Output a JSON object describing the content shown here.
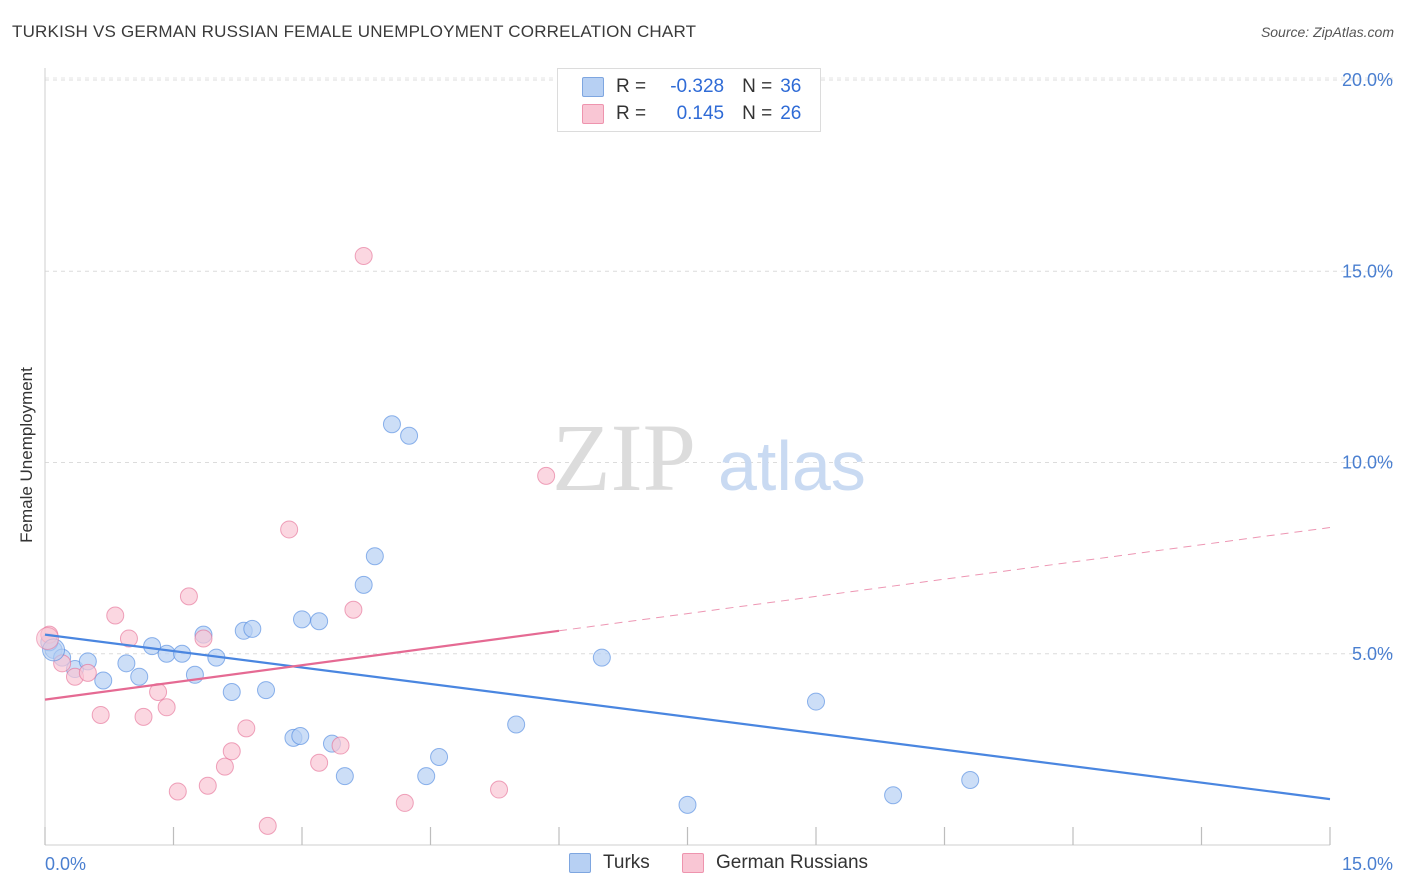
{
  "title": "TURKISH VS GERMAN RUSSIAN FEMALE UNEMPLOYMENT CORRELATION CHART",
  "source": "Source: ZipAtlas.com",
  "watermark": {
    "zip": "ZIP",
    "atlas": "atlas"
  },
  "legend": {
    "r_label": "R =",
    "n_label": "N =",
    "rows": [
      {
        "r": "-0.328",
        "n": "36",
        "color": "#b7d0f3",
        "border": "#7ea6e0"
      },
      {
        "r": "0.145",
        "n": "26",
        "color": "#f9c6d4",
        "border": "#ee94ae"
      }
    ]
  },
  "bottom_legend": [
    {
      "label": "Turks",
      "color": "#b7d0f3",
      "border": "#7ea6e0"
    },
    {
      "label": "German Russians",
      "color": "#f9c6d4",
      "border": "#ee94ae"
    }
  ],
  "chart_data": {
    "type": "scatter",
    "title": "TURKISH VS GERMAN RUSSIAN FEMALE UNEMPLOYMENT CORRELATION CHART",
    "xlabel": "",
    "ylabel": "Female Unemployment",
    "xlim": [
      0,
      15
    ],
    "ylim": [
      0,
      20
    ],
    "x_tick_labels": [
      {
        "value": 0,
        "label": "0.0%"
      },
      {
        "value": 15,
        "label": "15.0%"
      }
    ],
    "y_tick_labels": [
      {
        "value": 5,
        "label": "5.0%"
      },
      {
        "value": 10,
        "label": "10.0%"
      },
      {
        "value": 15,
        "label": "15.0%"
      },
      {
        "value": 20,
        "label": "20.0%"
      }
    ],
    "series": [
      {
        "name": "Turks",
        "color": "#4a86e0",
        "fill": "#b7d0f3",
        "trend": {
          "x0": 0,
          "y0": 5.5,
          "x1": 15,
          "y1": 1.2,
          "solid_to": 15
        },
        "points": [
          [
            0.1,
            5.1
          ],
          [
            0.35,
            4.6
          ],
          [
            0.5,
            4.8
          ],
          [
            0.68,
            4.3
          ],
          [
            0.95,
            4.75
          ],
          [
            1.1,
            4.4
          ],
          [
            1.25,
            5.2
          ],
          [
            1.42,
            5.0
          ],
          [
            1.6,
            5.0
          ],
          [
            1.75,
            4.45
          ],
          [
            1.85,
            5.5
          ],
          [
            2.0,
            4.9
          ],
          [
            2.18,
            4.0
          ],
          [
            2.32,
            5.6
          ],
          [
            2.42,
            5.65
          ],
          [
            2.58,
            4.05
          ],
          [
            2.9,
            2.8
          ],
          [
            2.98,
            2.85
          ],
          [
            3.0,
            5.9
          ],
          [
            3.2,
            5.85
          ],
          [
            3.35,
            2.65
          ],
          [
            3.5,
            1.8
          ],
          [
            3.72,
            6.8
          ],
          [
            3.85,
            7.55
          ],
          [
            4.05,
            11.0
          ],
          [
            4.25,
            10.7
          ],
          [
            4.45,
            1.8
          ],
          [
            4.6,
            2.3
          ],
          [
            5.5,
            3.15
          ],
          [
            6.5,
            4.9
          ],
          [
            7.5,
            1.05
          ],
          [
            9.0,
            3.75
          ],
          [
            9.9,
            1.3
          ],
          [
            10.8,
            1.7
          ],
          [
            0.05,
            5.3
          ],
          [
            0.2,
            4.9
          ]
        ]
      },
      {
        "name": "German Russians",
        "color": "#e56a93",
        "fill": "#f9c6d4",
        "trend": {
          "x0": 0,
          "y0": 3.8,
          "x1": 15,
          "y1": 8.3,
          "solid_to": 6.0
        },
        "points": [
          [
            0.05,
            5.5
          ],
          [
            0.2,
            4.75
          ],
          [
            0.35,
            4.4
          ],
          [
            0.5,
            4.5
          ],
          [
            0.65,
            3.4
          ],
          [
            0.82,
            6.0
          ],
          [
            0.98,
            5.4
          ],
          [
            1.15,
            3.35
          ],
          [
            1.32,
            4.0
          ],
          [
            1.42,
            3.6
          ],
          [
            1.55,
            1.4
          ],
          [
            1.68,
            6.5
          ],
          [
            1.85,
            5.4
          ],
          [
            1.9,
            1.55
          ],
          [
            2.1,
            2.05
          ],
          [
            2.18,
            2.45
          ],
          [
            2.35,
            3.05
          ],
          [
            2.6,
            0.5
          ],
          [
            2.85,
            8.25
          ],
          [
            3.2,
            2.15
          ],
          [
            3.45,
            2.6
          ],
          [
            3.6,
            6.15
          ],
          [
            3.72,
            15.4
          ],
          [
            4.2,
            1.1
          ],
          [
            5.3,
            1.45
          ],
          [
            5.85,
            9.65
          ]
        ]
      }
    ]
  }
}
